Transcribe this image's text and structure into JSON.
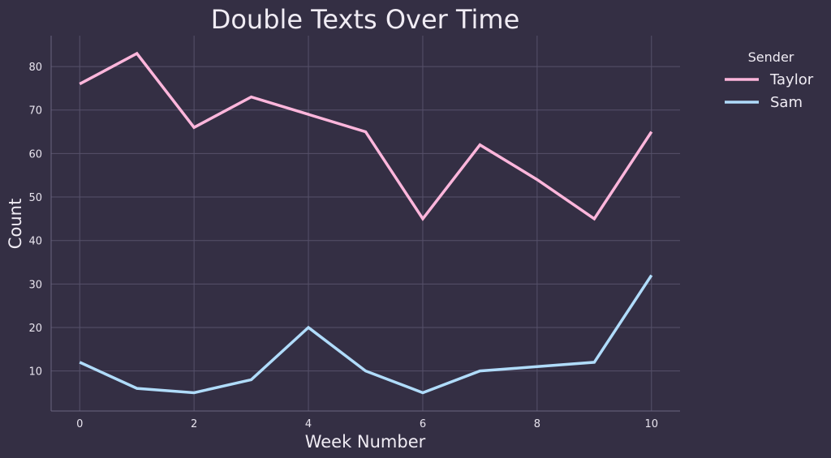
{
  "chart_data": {
    "type": "line",
    "title": "Double Texts Over Time",
    "xlabel": "Week Number",
    "ylabel": "Count",
    "x": [
      0,
      1,
      2,
      3,
      4,
      5,
      6,
      7,
      8,
      9,
      10
    ],
    "xlim": [
      -0.5,
      10.5
    ],
    "ylim": [
      0.8,
      87.1
    ],
    "xticks": [
      0,
      2,
      4,
      6,
      8,
      10
    ],
    "yticks": [
      10,
      20,
      30,
      40,
      50,
      60,
      70,
      80
    ],
    "grid": true,
    "legend": {
      "title": "Sender",
      "placement": "outside-top-right"
    },
    "series": [
      {
        "name": "Taylor",
        "color": "#ffb6dc",
        "values": [
          76,
          83,
          66,
          73,
          69,
          65,
          45,
          62,
          54,
          45,
          65
        ]
      },
      {
        "name": "Sam",
        "color": "#b0dcfb",
        "values": [
          12,
          6,
          5,
          8,
          20,
          10,
          5,
          10,
          11,
          12,
          32
        ]
      }
    ],
    "colors": {
      "background": "#342f44",
      "grid": "#56516a",
      "axis": "#6a6580",
      "text": "#f0ecf4"
    }
  }
}
